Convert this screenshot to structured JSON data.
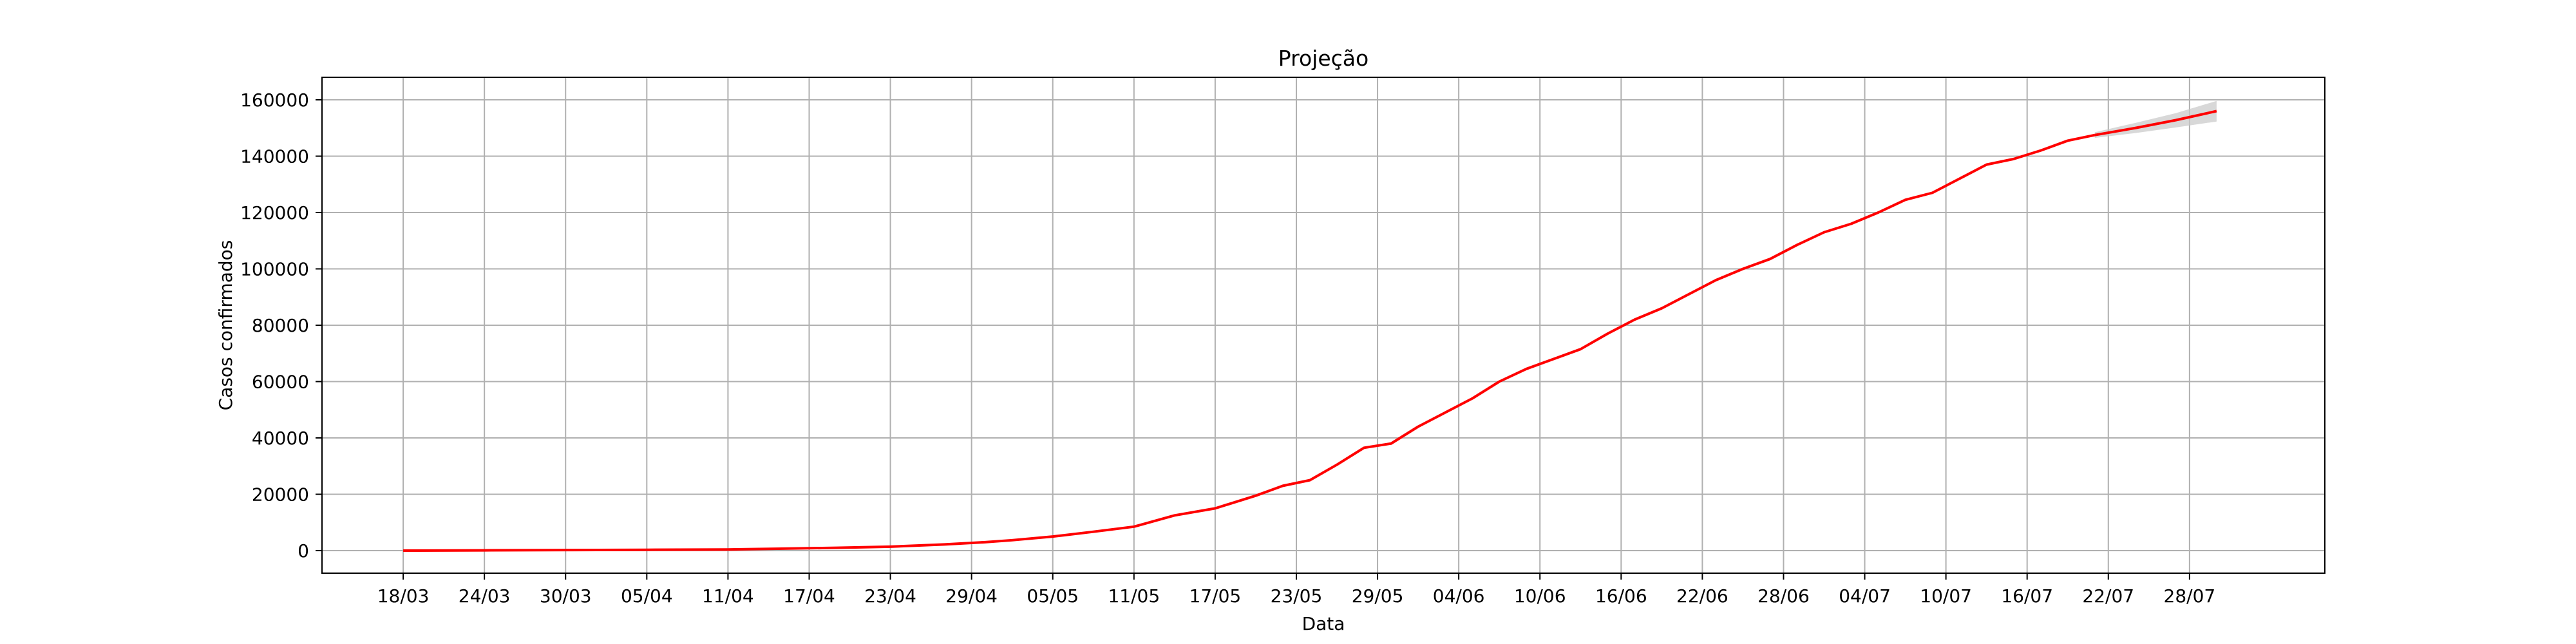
{
  "chart_data": {
    "type": "line",
    "title": "Projeção",
    "xlabel": "Data",
    "ylabel": "Casos confirmados",
    "x_tick_labels": [
      "18/03",
      "24/03",
      "30/03",
      "05/04",
      "11/04",
      "17/04",
      "23/04",
      "29/04",
      "05/05",
      "11/05",
      "17/05",
      "23/05",
      "29/05",
      "04/06",
      "10/06",
      "16/06",
      "22/06",
      "28/06",
      "04/07",
      "10/07",
      "16/07",
      "22/07",
      "28/07"
    ],
    "y_ticks": [
      0,
      20000,
      40000,
      60000,
      80000,
      100000,
      120000,
      140000,
      160000
    ],
    "y_tick_labels": [
      "0",
      "20000",
      "40000",
      "60000",
      "80000",
      "100000",
      "120000",
      "140000",
      "160000"
    ],
    "xlim": [
      "2020-03-12",
      "2020-08-07"
    ],
    "ylim": [
      -8000,
      168000
    ],
    "grid": true,
    "colors": {
      "line": "#ff0000",
      "band": "#c8c8c8",
      "grid": "#b0b0b0"
    },
    "series": [
      {
        "x": [
          "2020-03-18",
          "2020-03-24",
          "2020-03-30",
          "2020-04-05",
          "2020-04-11",
          "2020-04-15",
          "2020-04-19",
          "2020-04-23",
          "2020-04-27",
          "2020-04-30",
          "2020-05-02",
          "2020-05-05",
          "2020-05-08",
          "2020-05-11",
          "2020-05-14",
          "2020-05-17",
          "2020-05-20",
          "2020-05-22",
          "2020-05-24",
          "2020-05-26",
          "2020-05-28",
          "2020-05-30",
          "2020-06-01",
          "2020-06-03",
          "2020-06-05",
          "2020-06-07",
          "2020-06-09",
          "2020-06-11",
          "2020-06-13",
          "2020-06-15",
          "2020-06-17",
          "2020-06-19",
          "2020-06-21",
          "2020-06-23",
          "2020-06-25",
          "2020-06-27",
          "2020-06-29",
          "2020-07-01",
          "2020-07-03",
          "2020-07-05",
          "2020-07-07",
          "2020-07-09",
          "2020-07-11",
          "2020-07-13",
          "2020-07-15",
          "2020-07-17",
          "2020-07-19",
          "2020-07-21"
        ],
        "y": [
          0,
          100,
          200,
          300,
          400,
          700,
          1000,
          1400,
          2200,
          3000,
          3700,
          5000,
          6700,
          8500,
          12500,
          15000,
          19500,
          23000,
          25000,
          30500,
          36500,
          38000,
          44000,
          49000,
          54000,
          60000,
          64500,
          68000,
          71500,
          77000,
          82000,
          86000,
          91000,
          96000,
          100000,
          103500,
          108500,
          113000,
          116000,
          120000,
          124500,
          127000,
          132000,
          137000,
          139000,
          142000,
          145500,
          147500
        ]
      },
      {
        "name_hidden": "",
        "x": [
          "2020-07-21",
          "2020-07-24",
          "2020-07-27",
          "2020-07-30"
        ],
        "y": [
          147500,
          150000,
          152800,
          156000
        ],
        "band_low": [
          146500,
          148200,
          150200,
          152300
        ],
        "band_high": [
          148500,
          151800,
          155300,
          159600
        ]
      }
    ]
  }
}
